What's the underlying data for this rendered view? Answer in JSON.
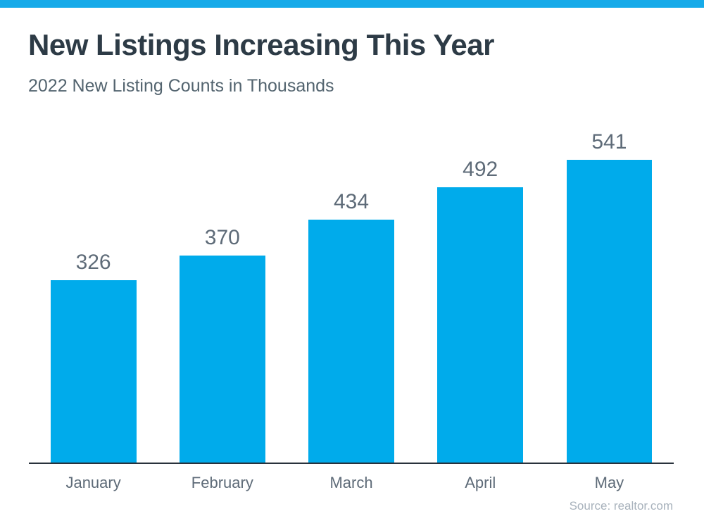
{
  "page": {
    "title": "New Listings Increasing This Year",
    "subtitle": "2022 New Listing Counts in Thousands",
    "source": "Source: realtor.com"
  },
  "chart_data": {
    "type": "bar",
    "title": "New Listings Increasing This Year",
    "subtitle": "2022 New Listing Counts in Thousands",
    "categories": [
      "January",
      "February",
      "March",
      "April",
      "May"
    ],
    "values": [
      326,
      370,
      434,
      492,
      541
    ],
    "value_labels": [
      "326",
      "370",
      "434",
      "492",
      "541"
    ],
    "xlabel": "",
    "ylabel": "",
    "ylim": [
      0,
      541
    ],
    "grid": false,
    "legend_position": "none",
    "value_labels_shown": true,
    "baseline_axis_shown": true,
    "source": "Source: realtor.com"
  },
  "colors": {
    "accent_stripe": "#16AAE9",
    "bar_fill": "#00ABEB",
    "title_text": "#2D3B46",
    "subtitle_text": "#53646F",
    "label_text": "#5E6B78",
    "axis_line": "#29323C",
    "source_text": "#A8B2BC",
    "background": "#FFFFFF"
  }
}
